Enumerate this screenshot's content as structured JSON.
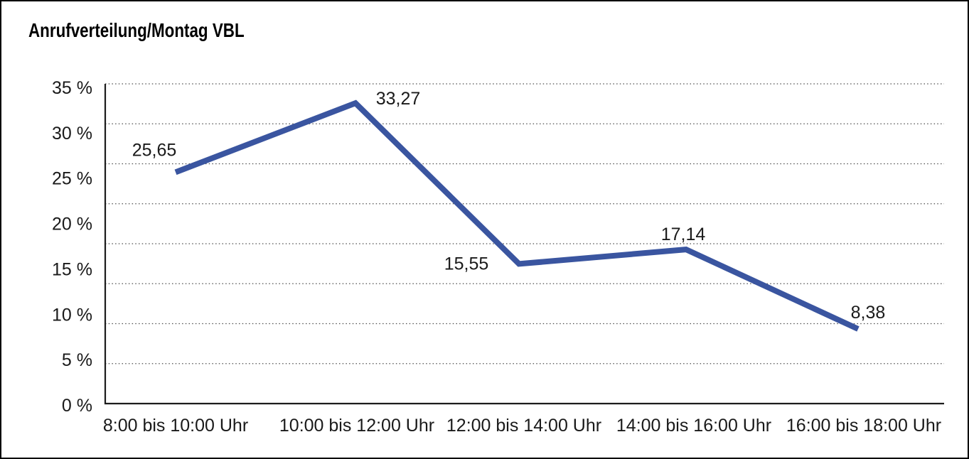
{
  "page": {
    "background": "#ffffff",
    "border_color": "#000000"
  },
  "chart_data": {
    "type": "line",
    "title": "Anrufverteilung/Montag VBL",
    "categories": [
      "8:00 bis 10:00 Uhr",
      "10:00 bis 12:00 Uhr",
      "12:00 bis 14:00 Uhr",
      "14:00 bis 16:00 Uhr",
      "16:00 bis 18:00 Uhr"
    ],
    "values": [
      25.65,
      33.27,
      15.55,
      17.14,
      8.38
    ],
    "point_labels": [
      "25,65",
      "33,27",
      "15,55",
      "17,14",
      "8,38"
    ],
    "y_ticks": [
      "35 %",
      "30 %",
      "25 %",
      "20 %",
      "15 %",
      "10 %",
      "5 %",
      "0 %"
    ],
    "ylim": [
      0,
      35
    ],
    "y_tick_step_percent": 5,
    "xlabel": "",
    "ylabel": "",
    "legend": "none",
    "grid": "horizontal-dotted",
    "colors": {
      "line": "#3A55A0",
      "axis": "#1c1c1c",
      "grid": "#4d4d4d",
      "text": "#1a1a1a",
      "title": "#000000"
    }
  }
}
